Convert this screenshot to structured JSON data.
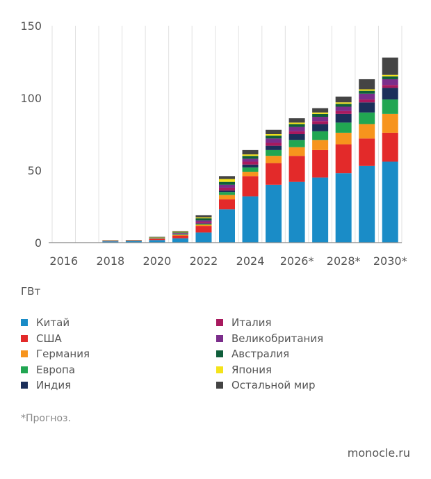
{
  "chart_data": {
    "type": "bar",
    "stacked": true,
    "categories": [
      "2016",
      "2017",
      "2018",
      "2019",
      "2020",
      "2021",
      "2022",
      "2023",
      "2024",
      "2025",
      "2026*",
      "2027*",
      "2028*",
      "2029*",
      "2030*"
    ],
    "x_tick_labels": [
      "2016",
      "2018",
      "2020",
      "2022",
      "2024",
      "2026*",
      "2028*",
      "2030*"
    ],
    "y_ticks": [
      0,
      50,
      100,
      150
    ],
    "ylim": [
      0,
      150
    ],
    "grid": {
      "vertical": true,
      "horizontal": false
    },
    "unit_label": "ГВт",
    "legend_position": "bottom",
    "series": [
      {
        "name": "Китай",
        "color": "#1a8cc7",
        "values": [
          0.1,
          0.2,
          0.9,
          1.0,
          1.8,
          3.0,
          7.0,
          23.0,
          32.0,
          40.0,
          42.0,
          45.0,
          48.0,
          53.0,
          56.0
        ]
      },
      {
        "name": "США",
        "color": "#e32a2a",
        "values": [
          0,
          0,
          0.2,
          0.2,
          0.6,
          1.8,
          4.5,
          7.0,
          14.0,
          15.0,
          18.0,
          19.0,
          20.0,
          19.0,
          20.0
        ]
      },
      {
        "name": "Германия",
        "color": "#f7941d",
        "values": [
          0,
          0,
          0.1,
          0.1,
          0.3,
          0.6,
          1.0,
          3.0,
          3.0,
          5.0,
          6.0,
          7.0,
          8.0,
          10.0,
          13.0
        ]
      },
      {
        "name": "Европа",
        "color": "#21a652",
        "values": [
          0,
          0,
          0.1,
          0.1,
          0.2,
          0.3,
          0.5,
          2.0,
          3.0,
          4.0,
          5.0,
          6.0,
          7.0,
          8.0,
          10.0
        ]
      },
      {
        "name": "Индия",
        "color": "#1b2f5a",
        "values": [
          0,
          0,
          0,
          0,
          0.1,
          0.2,
          0.3,
          1.0,
          2.0,
          3.0,
          4.0,
          5.0,
          6.0,
          7.0,
          8.0
        ]
      },
      {
        "name": "Италия",
        "color": "#a8195e",
        "values": [
          0,
          0,
          0.1,
          0.1,
          0.2,
          0.4,
          1.0,
          2.0,
          2.0,
          2.0,
          2.0,
          2.0,
          2.0,
          2.0,
          2.0
        ]
      },
      {
        "name": "Великобритания",
        "color": "#7b2d8b",
        "values": [
          0,
          0,
          0.1,
          0.1,
          0.2,
          0.3,
          1.0,
          2.0,
          2.0,
          3.0,
          3.0,
          3.0,
          3.0,
          4.0,
          4.0
        ]
      },
      {
        "name": "Австралия",
        "color": "#0f5e3b",
        "values": [
          0,
          0,
          0.1,
          0.1,
          0.2,
          0.5,
          1.5,
          2.0,
          2.0,
          2.0,
          2.0,
          2.0,
          2.0,
          2.0,
          2.0
        ]
      },
      {
        "name": "Япония",
        "color": "#f4e31a",
        "values": [
          0,
          0,
          0.1,
          0.1,
          0.2,
          0.4,
          0.7,
          2.0,
          1.0,
          1.0,
          1.0,
          1.0,
          1.0,
          1.0,
          1.0
        ]
      },
      {
        "name": "Остальной мир",
        "color": "#444444",
        "values": [
          0,
          0,
          0.1,
          0.1,
          0.2,
          0.5,
          1.5,
          2.0,
          3.0,
          3.0,
          3.0,
          3.0,
          4.0,
          7.0,
          12.0
        ]
      }
    ]
  },
  "footnote": "*Прогноз.",
  "source": "monocle.ru"
}
